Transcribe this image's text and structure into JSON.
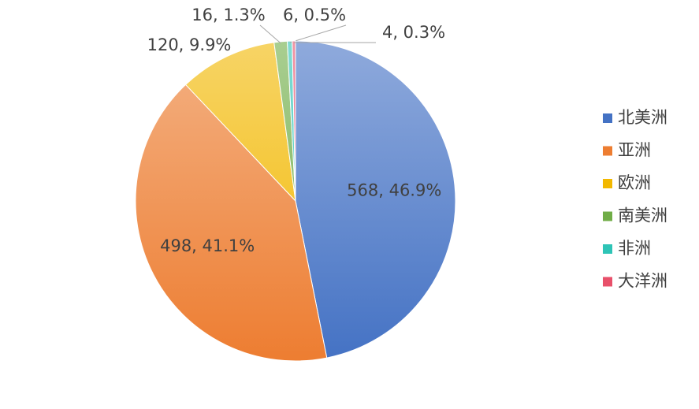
{
  "chart_data": {
    "type": "pie",
    "categories": [
      "北美洲",
      "亚洲",
      "欧洲",
      "南美洲",
      "非洲",
      "大洋洲"
    ],
    "values": [
      568,
      498,
      120,
      16,
      6,
      4
    ],
    "value_labels": [
      "568, 46.9%",
      "498, 41.1%",
      "120, 9.9%",
      "16, 1.3%",
      "6, 0.5%",
      "4, 0.3%"
    ],
    "colors": [
      "#4472c4",
      "#ed7d31",
      "#f2b800",
      "#70ad47",
      "#2ec4b6",
      "#e8506a"
    ],
    "legend": "right"
  }
}
